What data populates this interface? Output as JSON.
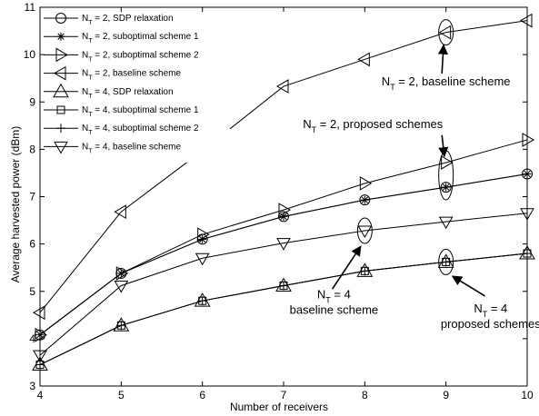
{
  "chart_data": {
    "type": "line",
    "xlabel": "Number of  receivers",
    "ylabel": "Average harvested power (dBm)",
    "xlim": [
      4,
      10
    ],
    "ylim": [
      3,
      11
    ],
    "x_ticks": [
      "4",
      "5",
      "6",
      "7",
      "8",
      "9",
      "10"
    ],
    "y_ticks": [
      "3",
      "4",
      "5",
      "6",
      "7",
      "8",
      "9",
      "10",
      "11"
    ],
    "grid": false,
    "legend_position": "top-left",
    "x": [
      4,
      5,
      6,
      7,
      8,
      9,
      10
    ],
    "series": [
      {
        "name": "N_T = 2, SDP relaxation",
        "main": "N",
        "sub": "T",
        "rest": " = 2, SDP relaxation",
        "marker": "circle",
        "values": [
          4.08,
          5.38,
          6.1,
          6.58,
          6.93,
          7.2,
          7.48
        ]
      },
      {
        "name": "N_T = 2, suboptimal scheme 1",
        "main": "N",
        "sub": "T",
        "rest": " = 2, suboptimal scheme 1",
        "marker": "asterisk",
        "values": [
          4.08,
          5.38,
          6.1,
          6.58,
          6.93,
          7.2,
          7.48
        ]
      },
      {
        "name": "N_T = 2, suboptimal scheme 2",
        "main": "N",
        "sub": "T",
        "rest": " = 2, suboptimal scheme 2",
        "marker": "triangle-right",
        "values": [
          4.08,
          5.38,
          6.2,
          6.72,
          7.28,
          7.72,
          8.2
        ]
      },
      {
        "name": "N_T = 2, baseline scheme",
        "main": "N",
        "sub": "T",
        "rest": " = 2, baseline scheme",
        "marker": "triangle-left",
        "values": [
          4.55,
          6.68,
          7.97,
          9.33,
          9.9,
          10.47,
          10.72
        ]
      },
      {
        "name": "N_T = 4, SDP relaxation",
        "main": "N",
        "sub": "T",
        "rest": " = 4, SDP relaxation",
        "marker": "triangle-up",
        "values": [
          3.45,
          4.28,
          4.8,
          5.12,
          5.43,
          5.62,
          5.8
        ]
      },
      {
        "name": "N_T = 4, suboptimal scheme 1",
        "main": "N",
        "sub": "T",
        "rest": " = 4, suboptimal scheme 1",
        "marker": "square",
        "values": [
          3.45,
          4.28,
          4.8,
          5.12,
          5.43,
          5.62,
          5.8
        ]
      },
      {
        "name": "N_T = 4, suboptimal scheme 2",
        "main": "N",
        "sub": "T",
        "rest": " = 4, suboptimal scheme 2",
        "marker": "plus",
        "values": [
          3.45,
          4.28,
          4.8,
          5.12,
          5.43,
          5.62,
          5.8
        ]
      },
      {
        "name": "N_T = 4, baseline scheme",
        "main": "N",
        "sub": "T",
        "rest": " = 4, baseline scheme",
        "marker": "triangle-down",
        "values": [
          3.65,
          5.12,
          5.7,
          6.02,
          6.28,
          6.47,
          6.65
        ]
      }
    ],
    "annotations": [
      {
        "lines": [
          {
            "main": "N",
            "sub": "T",
            "rest": " = 2, baseline scheme"
          }
        ],
        "text_x": 9.0,
        "text_y": 9.35,
        "ellipse_x": 9.0,
        "ellipse_y": 10.47,
        "arrow_from": [
          8.95,
          9.6
        ],
        "arrow_to": [
          8.97,
          10.2
        ]
      },
      {
        "lines": [
          {
            "main": "N",
            "sub": "T",
            "rest": " = 2, proposed schemes"
          }
        ],
        "text_x": 8.1,
        "text_y": 8.45,
        "ellipse_x": 9.0,
        "ellipse_y": 7.45,
        "arrow_from": [
          8.95,
          8.3
        ],
        "arrow_to": [
          8.98,
          7.85
        ]
      },
      {
        "lines": [
          {
            "main": "N",
            "sub": "T",
            "rest": " = 4"
          },
          {
            "main": "baseline scheme",
            "sub": "",
            "rest": ""
          }
        ],
        "text_x": 7.62,
        "text_y": 4.85,
        "ellipse_x": 8.0,
        "ellipse_y": 6.28,
        "arrow_from": [
          7.6,
          5.05
        ],
        "arrow_to": [
          7.95,
          5.95
        ]
      },
      {
        "lines": [
          {
            "main": "N",
            "sub": "T",
            "rest": " = 4"
          },
          {
            "main": "proposed schemes",
            "sub": "",
            "rest": ""
          }
        ],
        "text_x": 9.55,
        "text_y": 4.55,
        "ellipse_x": 9.0,
        "ellipse_y": 5.62,
        "arrow_from": [
          9.48,
          4.9
        ],
        "arrow_to": [
          9.08,
          5.32
        ]
      }
    ]
  }
}
